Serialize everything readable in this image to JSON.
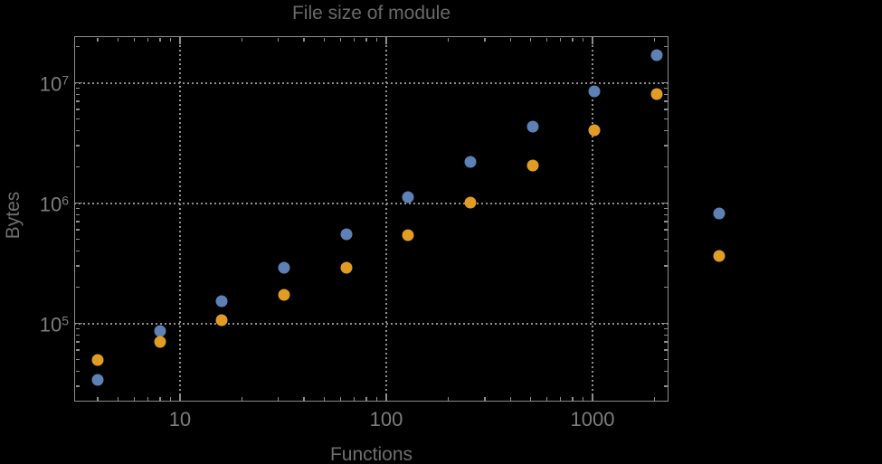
{
  "chart_data": {
    "type": "scatter",
    "title": "File size of module",
    "xlabel": "Functions",
    "ylabel": "Bytes",
    "xscale": "log",
    "yscale": "log",
    "xlim": [
      3.07,
      2335
    ],
    "ylim": [
      22400,
      24400000
    ],
    "xticks": [
      10,
      100,
      1000
    ],
    "xtick_labels": [
      "10",
      "100",
      "1000"
    ],
    "yticks": [
      100000,
      1000000,
      10000000
    ],
    "ytick_labels": [
      "10^5",
      "10^6",
      "10^7"
    ],
    "grid": "dotted gridlines at decade ticks, frame on all four sides with inward log minor ticks",
    "legend": "none",
    "x": [
      4,
      8,
      16,
      32,
      64,
      128,
      256,
      512,
      1024,
      2048,
      4096
    ],
    "series": [
      {
        "name": "blue",
        "color": "#5e81b5",
        "values": [
          34000,
          87000,
          153000,
          290000,
          550000,
          1120000,
          2200000,
          4300000,
          8500000,
          17000000,
          820000
        ]
      },
      {
        "name": "orange",
        "color": "#e19c24",
        "values": [
          50000,
          70000,
          107000,
          172000,
          290000,
          540000,
          1010000,
          2050000,
          4050000,
          8050000,
          363000
        ]
      }
    ]
  },
  "colors": {
    "background": "#000000",
    "frame": "#8c8c8c",
    "gridlines": "#8f8f8f",
    "title_text": "#696969",
    "axis_label_text": "#6e6e6e",
    "tick_label_text": "#7d7d7d",
    "series_blue": "#5e81b5",
    "series_orange": "#e19c24"
  }
}
